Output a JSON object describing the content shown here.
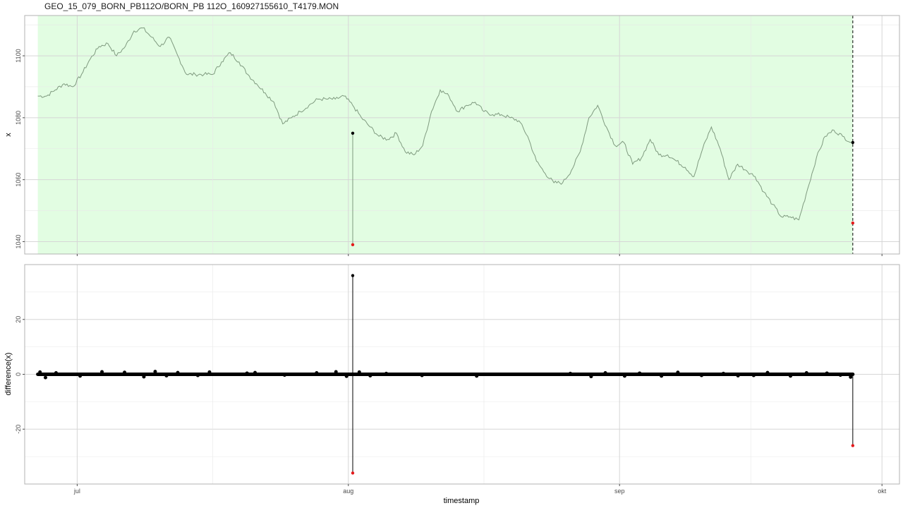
{
  "chart_data": [
    {
      "type": "line",
      "title": "GEO_15_079_BORN_PB112O/BORN_PB 112O_160927155610_T4179.MON",
      "xlabel": "",
      "ylabel": "x",
      "ylim": [
        1036,
        1113
      ],
      "xlim": [
        "2016-06-25",
        "2016-10-03"
      ],
      "x_ticks": [
        "jul",
        "aug",
        "sep",
        "okt"
      ],
      "y_ticks": [
        1040,
        1060,
        1080,
        1100
      ],
      "grid": true,
      "shaded_region": {
        "from": "2016-06-26 12:00",
        "to": "2016-09-27 15:56",
        "color": "#e2fde2"
      },
      "series_color": "#7f9a7f",
      "marker_line": {
        "x": "2016-09-27 15:56",
        "style": "dashed"
      },
      "series": [
        {
          "name": "",
          "x": [
            "2016-06-26 12:00",
            "2016-06-27 12:00",
            "2016-06-28 12:00",
            "2016-06-29 12:00",
            "2016-06-30 12:00",
            "2016-07-01 12:00",
            "2016-07-02 12:00",
            "2016-07-03 12:00",
            "2016-07-04 12:00",
            "2016-07-05 12:00",
            "2016-07-06 12:00",
            "2016-07-07 12:00",
            "2016-07-08 12:00",
            "2016-07-09 12:00",
            "2016-07-10 12:00",
            "2016-07-11 12:00",
            "2016-07-12 12:00",
            "2016-07-13 12:00",
            "2016-07-14 12:00",
            "2016-07-15 12:00",
            "2016-07-16 12:00",
            "2016-07-17 12:00",
            "2016-07-18 12:00",
            "2016-07-19 12:00",
            "2016-07-20 12:00",
            "2016-07-21 12:00",
            "2016-07-22 12:00",
            "2016-07-23 12:00",
            "2016-07-24 12:00",
            "2016-07-25 12:00",
            "2016-07-26 12:00",
            "2016-07-27 12:00",
            "2016-07-28 12:00",
            "2016-07-29 12:00",
            "2016-07-30 12:00",
            "2016-07-31 12:00",
            "2016-08-01 12:00",
            "2016-08-02 12:00",
            "2016-08-03 12:00",
            "2016-08-04 12:00",
            "2016-08-05 12:00",
            "2016-08-06 12:00",
            "2016-08-07 12:00",
            "2016-08-08 12:00",
            "2016-08-09 12:00",
            "2016-08-10 12:00",
            "2016-08-11 12:00",
            "2016-08-12 12:00",
            "2016-08-13 12:00",
            "2016-08-14 12:00",
            "2016-08-15 12:00",
            "2016-08-16 12:00",
            "2016-08-17 12:00",
            "2016-08-18 12:00",
            "2016-08-19 12:00",
            "2016-08-20 12:00",
            "2016-08-21 12:00",
            "2016-08-22 12:00",
            "2016-08-23 12:00",
            "2016-08-24 12:00",
            "2016-08-25 12:00",
            "2016-08-26 12:00",
            "2016-08-27 12:00",
            "2016-08-28 12:00",
            "2016-08-29 12:00",
            "2016-08-30 12:00",
            "2016-08-31 12:00",
            "2016-09-01 12:00",
            "2016-09-02 12:00",
            "2016-09-03 12:00",
            "2016-09-04 12:00",
            "2016-09-05 12:00",
            "2016-09-06 12:00",
            "2016-09-07 12:00",
            "2016-09-08 12:00",
            "2016-09-09 12:00",
            "2016-09-10 12:00",
            "2016-09-11 12:00",
            "2016-09-12 12:00",
            "2016-09-13 12:00",
            "2016-09-14 12:00",
            "2016-09-15 12:00",
            "2016-09-16 12:00",
            "2016-09-17 12:00",
            "2016-09-18 12:00",
            "2016-09-19 12:00",
            "2016-09-20 12:00",
            "2016-09-21 12:00",
            "2016-09-22 12:00",
            "2016-09-23 12:00",
            "2016-09-24 12:00",
            "2016-09-25 12:00",
            "2016-09-26 12:00",
            "2016-09-27 12:00"
          ],
          "values": [
            1087,
            1087,
            1089,
            1091,
            1090,
            1094,
            1099,
            1103,
            1104,
            1100,
            1103,
            1108,
            1109,
            1106,
            1103,
            1106,
            1100,
            1094,
            1094,
            1094,
            1094,
            1098,
            1101,
            1098,
            1094,
            1091,
            1088,
            1085,
            1078,
            1080,
            1082,
            1084,
            1086,
            1086,
            1086,
            1087,
            1084,
            1080,
            1077,
            1074,
            1073,
            1075,
            1069,
            1068,
            1071,
            1082,
            1089,
            1087,
            1082,
            1084,
            1085,
            1082,
            1081,
            1081,
            1080,
            1079,
            1074,
            1066,
            1062,
            1059,
            1059,
            1063,
            1069,
            1080,
            1084,
            1077,
            1071,
            1072,
            1065,
            1067,
            1073,
            1068,
            1068,
            1066,
            1064,
            1061,
            1070,
            1077,
            1070,
            1060,
            1065,
            1063,
            1061,
            1056,
            1052,
            1048,
            1048,
            1047,
            1057,
            1067,
            1074,
            1076,
            1074,
            1072
          ]
        }
      ],
      "highlight_points": [
        {
          "x": "2016-08-01 12:00",
          "y": 1075,
          "color": "#000000"
        },
        {
          "x": "2016-08-01 12:00",
          "y": 1039,
          "color": "#e41a1c"
        },
        {
          "x": "2016-09-27 15:56",
          "y": 1072,
          "color": "#000000"
        },
        {
          "x": "2016-09-27 15:56",
          "y": 1046,
          "color": "#e41a1c"
        }
      ]
    },
    {
      "type": "scatter",
      "title": "",
      "xlabel": "timestamp",
      "ylabel": "difference(x)",
      "ylim": [
        -40,
        40
      ],
      "xlim": [
        "2016-06-25",
        "2016-10-03"
      ],
      "x_ticks": [
        "jul",
        "aug",
        "sep",
        "okt"
      ],
      "y_ticks": [
        -20,
        0,
        20
      ],
      "grid": true,
      "baseline": {
        "y": 0,
        "from": "2016-06-26 12:00",
        "to": "2016-09-27 15:56"
      },
      "spikes": [
        {
          "x": "2016-08-01 12:00",
          "y": 36,
          "color": "#000000"
        },
        {
          "x": "2016-08-01 12:00",
          "y": -36,
          "color": "#e41a1c"
        },
        {
          "x": "2016-09-27 15:56",
          "y": -26,
          "color": "#e41a1c"
        }
      ],
      "jitter_points": {
        "x": [
          "2016-06-26 18:00",
          "2016-06-27 09:00",
          "2016-06-28 14:00",
          "2016-07-01 08:00",
          "2016-07-03 20:00",
          "2016-07-06 10:00",
          "2016-07-08 15:00",
          "2016-07-09 22:00",
          "2016-07-11 05:00",
          "2016-07-12 12:00",
          "2016-07-14 19:00",
          "2016-07-16 03:00",
          "2016-07-20 10:00",
          "2016-07-21 08:00",
          "2016-07-24 17:00",
          "2016-07-28 09:00",
          "2016-07-30 14:00",
          "2016-07-31 19:00",
          "2016-08-02 06:00",
          "2016-08-03 12:00",
          "2016-08-05 08:00",
          "2016-08-09 10:00",
          "2016-08-15 16:00",
          "2016-08-26 09:00",
          "2016-08-28 18:00",
          "2016-08-30 09:00",
          "2016-09-01 14:00",
          "2016-09-03 07:00",
          "2016-09-05 19:00",
          "2016-09-07 16:00",
          "2016-09-10 09:00",
          "2016-09-12 21:00",
          "2016-09-14 13:00",
          "2016-09-16 08:00",
          "2016-09-17 22:00",
          "2016-09-20 13:00",
          "2016-09-22 09:00",
          "2016-09-24 17:00",
          "2016-09-26 06:00",
          "2016-09-27 10:00"
        ],
        "values": [
          0.8,
          -1.2,
          0.5,
          -0.6,
          0.9,
          0.7,
          -0.9,
          1.0,
          -0.5,
          0.6,
          -0.4,
          0.8,
          0.4,
          0.6,
          -0.3,
          0.5,
          0.9,
          -0.7,
          0.8,
          -0.5,
          0.3,
          -0.4,
          -0.6,
          0.3,
          -0.8,
          0.5,
          -0.6,
          0.4,
          -0.6,
          0.7,
          -0.4,
          0.3,
          -0.5,
          -0.4,
          0.6,
          -0.6,
          0.5,
          0.4,
          -0.3,
          -1.0
        ]
      }
    }
  ]
}
